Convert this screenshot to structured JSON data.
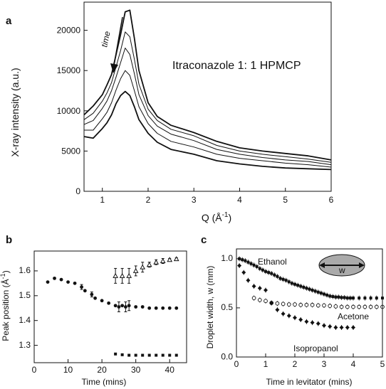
{
  "chart_data": [
    {
      "id": "a",
      "panel_label": "a",
      "type": "line",
      "xlabel": "Q (Å",
      "xlabel_sup": "-1",
      "xlabel_close": ")",
      "ylabel": "X-ray intensity (a.u.)",
      "xlim": [
        0.6,
        6.0
      ],
      "ylim": [
        0,
        23500
      ],
      "xticks": [
        1,
        2,
        3,
        4,
        5,
        6
      ],
      "yticks": [
        0,
        5000,
        10000,
        15000,
        20000
      ],
      "annotation": "Itraconazole 1: 1 HPMCP",
      "arrow_label": "time",
      "series": [
        {
          "values": [
            [
              0.6,
              9500
            ],
            [
              0.8,
              10600
            ],
            [
              1.0,
              12000
            ],
            [
              1.1,
              13200
            ],
            [
              1.2,
              14500
            ],
            [
              1.3,
              17000
            ],
            [
              1.4,
              19500
            ],
            [
              1.5,
              22300
            ],
            [
              1.6,
              22500
            ],
            [
              1.7,
              19000
            ],
            [
              1.8,
              15000
            ],
            [
              2.0,
              11000
            ],
            [
              2.2,
              9300
            ],
            [
              2.5,
              8200
            ],
            [
              3.0,
              7300
            ],
            [
              3.5,
              6200
            ],
            [
              4.0,
              5400
            ],
            [
              4.5,
              5000
            ],
            [
              5.0,
              4700
            ],
            [
              5.5,
              4400
            ],
            [
              6.0,
              3900
            ]
          ]
        },
        {
          "values": [
            [
              0.6,
              8900
            ],
            [
              0.8,
              9700
            ],
            [
              1.0,
              11200
            ],
            [
              1.1,
              12200
            ],
            [
              1.2,
              13500
            ],
            [
              1.3,
              15500
            ],
            [
              1.4,
              17500
            ],
            [
              1.5,
              19800
            ],
            [
              1.6,
              19200
            ],
            [
              1.7,
              16400
            ],
            [
              1.8,
              13300
            ],
            [
              2.0,
              10200
            ],
            [
              2.2,
              8800
            ],
            [
              2.5,
              7700
            ],
            [
              3.0,
              6900
            ],
            [
              3.5,
              5700
            ],
            [
              4.0,
              5000
            ],
            [
              4.5,
              4600
            ],
            [
              5.0,
              4300
            ],
            [
              5.5,
              4000
            ],
            [
              6.0,
              3600
            ]
          ]
        },
        {
          "values": [
            [
              0.6,
              8300
            ],
            [
              0.8,
              8800
            ],
            [
              1.0,
              10300
            ],
            [
              1.1,
              11200
            ],
            [
              1.2,
              12500
            ],
            [
              1.3,
              14200
            ],
            [
              1.4,
              16000
            ],
            [
              1.5,
              17800
            ],
            [
              1.6,
              17000
            ],
            [
              1.7,
              14600
            ],
            [
              1.8,
              12000
            ],
            [
              2.0,
              9400
            ],
            [
              2.2,
              8100
            ],
            [
              2.5,
              7100
            ],
            [
              3.0,
              6300
            ],
            [
              3.5,
              5200
            ],
            [
              4.0,
              4600
            ],
            [
              4.5,
              4200
            ],
            [
              5.0,
              3900
            ],
            [
              5.5,
              3700
            ],
            [
              6.0,
              3300
            ]
          ]
        },
        {
          "values": [
            [
              0.6,
              7600
            ],
            [
              0.8,
              7600
            ],
            [
              1.0,
              9000
            ],
            [
              1.1,
              9800
            ],
            [
              1.2,
              11000
            ],
            [
              1.3,
              12600
            ],
            [
              1.4,
              14000
            ],
            [
              1.5,
              15000
            ],
            [
              1.6,
              14400
            ],
            [
              1.7,
              12500
            ],
            [
              1.8,
              10500
            ],
            [
              2.0,
              8400
            ],
            [
              2.2,
              7200
            ],
            [
              2.5,
              6200
            ],
            [
              3.0,
              5500
            ],
            [
              3.5,
              4600
            ],
            [
              4.0,
              4100
            ],
            [
              4.5,
              3800
            ],
            [
              5.0,
              3500
            ],
            [
              5.5,
              3300
            ],
            [
              6.0,
              3000
            ]
          ]
        },
        {
          "values": [
            [
              0.6,
              6800
            ],
            [
              0.8,
              6600
            ],
            [
              1.0,
              7800
            ],
            [
              1.1,
              8500
            ],
            [
              1.2,
              9500
            ],
            [
              1.3,
              10900
            ],
            [
              1.4,
              11900
            ],
            [
              1.5,
              12400
            ],
            [
              1.6,
              11900
            ],
            [
              1.7,
              10500
            ],
            [
              1.8,
              8900
            ],
            [
              2.0,
              7200
            ],
            [
              2.2,
              6100
            ],
            [
              2.5,
              5200
            ],
            [
              3.0,
              4600
            ],
            [
              3.5,
              3800
            ],
            [
              4.0,
              3400
            ],
            [
              4.5,
              3100
            ],
            [
              5.0,
              2900
            ],
            [
              5.5,
              2800
            ],
            [
              6.0,
              2700
            ]
          ]
        }
      ]
    },
    {
      "id": "b",
      "panel_label": "b",
      "type": "scatter",
      "xlabel": "Time (mins)",
      "ylabel": "Peak position (Å",
      "ylabel_sup": "-1",
      "ylabel_close": ")",
      "xlim": [
        0,
        45
      ],
      "ylim": [
        1.23,
        1.68
      ],
      "xticks": [
        0,
        10,
        20,
        30,
        40
      ],
      "yticks": [
        1.3,
        1.4,
        1.5,
        1.6
      ],
      "series": [
        {
          "marker": "filled-circle",
          "points": [
            [
              4,
              1.555
            ],
            [
              6,
              1.57
            ],
            [
              8,
              1.565
            ],
            [
              10,
              1.555
            ],
            [
              12,
              1.55
            ],
            [
              14,
              1.535
            ],
            [
              15,
              1.52
            ],
            [
              17,
              1.505
            ],
            [
              18,
              1.49
            ],
            [
              20,
              1.48
            ],
            [
              22,
              1.47
            ],
            [
              24,
              1.46
            ],
            [
              25,
              1.455
            ],
            [
              26,
              1.46
            ],
            [
              27,
              1.455
            ],
            [
              28,
              1.46
            ],
            [
              30,
              1.455
            ],
            [
              32,
              1.455
            ],
            [
              34,
              1.45
            ],
            [
              36,
              1.45
            ],
            [
              38,
              1.45
            ],
            [
              40,
              1.45
            ],
            [
              42,
              1.45
            ]
          ],
          "err": [
            0,
            0,
            0,
            0,
            0,
            0.01,
            0,
            0.01,
            0,
            0,
            0,
            0,
            0.02,
            0,
            0.02,
            0.02,
            0,
            0,
            0,
            0,
            0,
            0,
            0
          ]
        },
        {
          "marker": "open-triangle",
          "points": [
            [
              24,
              1.58
            ],
            [
              26,
              1.58
            ],
            [
              28,
              1.58
            ],
            [
              30,
              1.6
            ],
            [
              32,
              1.615
            ],
            [
              34,
              1.625
            ],
            [
              36,
              1.635
            ],
            [
              38,
              1.64
            ],
            [
              40,
              1.645
            ],
            [
              42,
              1.648
            ]
          ],
          "err": [
            0.03,
            0.03,
            0.03,
            0.02,
            0.02,
            0.01,
            0.01,
            0.01,
            0.005,
            0.005
          ]
        },
        {
          "marker": "filled-square",
          "points": [
            [
              24,
              1.265
            ],
            [
              26,
              1.262
            ],
            [
              28,
              1.26
            ],
            [
              30,
              1.26
            ],
            [
              32,
              1.26
            ],
            [
              34,
              1.26
            ],
            [
              36,
              1.26
            ],
            [
              38,
              1.26
            ],
            [
              40,
              1.26
            ],
            [
              42,
              1.26
            ]
          ],
          "err": [
            0,
            0,
            0,
            0,
            0,
            0,
            0,
            0,
            0,
            0
          ]
        }
      ]
    },
    {
      "id": "c",
      "panel_label": "c",
      "type": "scatter",
      "xlabel": "Time in levitator (mins)",
      "ylabel": "Droplet width, w (mm)",
      "xlim": [
        0,
        5
      ],
      "ylim": [
        0,
        1.1
      ],
      "xticks": [
        0,
        1,
        2,
        3,
        4,
        5
      ],
      "yticks": [
        0.0,
        0.5,
        1.0
      ],
      "inset_label": "w",
      "series": [
        {
          "name": "Ethanol",
          "marker": "filled-square",
          "points": [
            [
              0.1,
              1.0
            ],
            [
              0.2,
              0.99
            ],
            [
              0.3,
              0.98
            ],
            [
              0.4,
              0.965
            ],
            [
              0.5,
              0.95
            ],
            [
              0.6,
              0.935
            ],
            [
              0.7,
              0.92
            ],
            [
              0.8,
              0.9
            ],
            [
              0.9,
              0.885
            ],
            [
              1.0,
              0.87
            ],
            [
              1.1,
              0.86
            ],
            [
              1.2,
              0.85
            ],
            [
              1.3,
              0.835
            ],
            [
              1.4,
              0.82
            ],
            [
              1.5,
              0.8
            ],
            [
              1.6,
              0.79
            ],
            [
              1.7,
              0.78
            ],
            [
              1.8,
              0.765
            ],
            [
              1.9,
              0.75
            ],
            [
              2.0,
              0.74
            ],
            [
              2.1,
              0.73
            ],
            [
              2.2,
              0.72
            ],
            [
              2.3,
              0.71
            ],
            [
              2.4,
              0.7
            ],
            [
              2.5,
              0.69
            ],
            [
              2.6,
              0.68
            ],
            [
              2.7,
              0.67
            ],
            [
              2.8,
              0.66
            ],
            [
              2.9,
              0.65
            ],
            [
              3.0,
              0.64
            ],
            [
              3.1,
              0.63
            ],
            [
              3.2,
              0.62
            ],
            [
              3.3,
              0.615
            ],
            [
              3.4,
              0.61
            ],
            [
              3.5,
              0.61
            ],
            [
              3.6,
              0.605
            ],
            [
              3.7,
              0.605
            ],
            [
              3.8,
              0.6
            ],
            [
              3.9,
              0.6
            ],
            [
              4.0,
              0.6
            ],
            [
              4.2,
              0.6
            ],
            [
              4.4,
              0.6
            ],
            [
              4.6,
              0.6
            ],
            [
              4.8,
              0.6
            ],
            [
              5.0,
              0.6
            ]
          ]
        },
        {
          "name": "Acetone",
          "marker": "open-circle",
          "points": [
            [
              0.6,
              0.6
            ],
            [
              0.8,
              0.58
            ],
            [
              1.0,
              0.57
            ],
            [
              1.2,
              0.55
            ],
            [
              1.4,
              0.545
            ],
            [
              1.6,
              0.54
            ],
            [
              1.8,
              0.535
            ],
            [
              2.0,
              0.535
            ],
            [
              2.2,
              0.53
            ],
            [
              2.4,
              0.53
            ],
            [
              2.6,
              0.53
            ],
            [
              2.8,
              0.525
            ],
            [
              3.0,
              0.525
            ],
            [
              3.2,
              0.52
            ],
            [
              3.4,
              0.515
            ],
            [
              3.6,
              0.51
            ],
            [
              3.8,
              0.51
            ],
            [
              4.0,
              0.51
            ],
            [
              4.2,
              0.51
            ],
            [
              4.4,
              0.51
            ],
            [
              4.6,
              0.51
            ],
            [
              4.8,
              0.51
            ],
            [
              5.0,
              0.51
            ]
          ]
        },
        {
          "name": "Isopropanol",
          "marker": "filled-diamond",
          "points": [
            [
              0.1,
              0.93
            ],
            [
              0.25,
              0.86
            ],
            [
              0.4,
              0.78
            ],
            [
              0.6,
              0.72
            ],
            [
              0.8,
              0.7
            ],
            [
              1.0,
              0.68
            ],
            [
              1.2,
              0.55
            ],
            [
              1.4,
              0.48
            ],
            [
              1.6,
              0.44
            ],
            [
              1.8,
              0.42
            ],
            [
              2.0,
              0.4
            ],
            [
              2.2,
              0.38
            ],
            [
              2.4,
              0.36
            ],
            [
              2.6,
              0.35
            ],
            [
              2.8,
              0.34
            ],
            [
              3.0,
              0.32
            ],
            [
              3.2,
              0.31
            ],
            [
              3.4,
              0.3
            ],
            [
              3.6,
              0.3
            ],
            [
              3.8,
              0.3
            ],
            [
              4.0,
              0.3
            ]
          ]
        }
      ]
    }
  ]
}
